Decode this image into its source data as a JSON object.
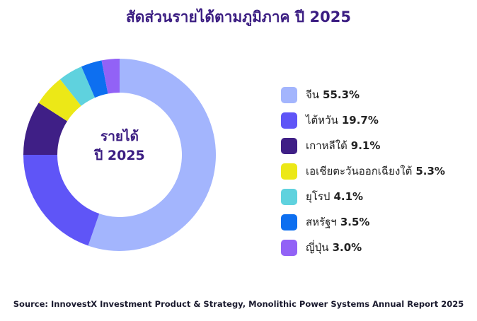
{
  "title": "สัดส่วนรายได้ตามภูมิภาค ปี 2025",
  "center_label": {
    "line1": "รายได้",
    "line2": "ปี 2025"
  },
  "source": "Source: InnovestX Investment Product & Strategy, Monolithic Power Systems Annual Report 2025",
  "chart_data": {
    "type": "pie",
    "variant": "donut",
    "title": "สัดส่วนรายได้ตามภูมิภาค ปี 2025",
    "legend_position": "right",
    "categories": [
      "จีน",
      "ไต้หวัน",
      "เกาหลีใต้",
      "เอเชียตะวันออกเฉียงใต้",
      "ยุโรป",
      "สหรัฐฯ",
      "ญี่ปุ่น"
    ],
    "values": [
      55.3,
      19.7,
      9.1,
      5.3,
      4.1,
      3.5,
      3.0
    ],
    "value_labels": [
      "55.3%",
      "19.7%",
      "9.1%",
      "5.3%",
      "4.1%",
      "3.5%",
      "3.0%"
    ],
    "colors": [
      "#a3b5fd",
      "#5f55f7",
      "#3f1f86",
      "#ece817",
      "#5fd2de",
      "#0d6ff0",
      "#9262f6"
    ]
  }
}
